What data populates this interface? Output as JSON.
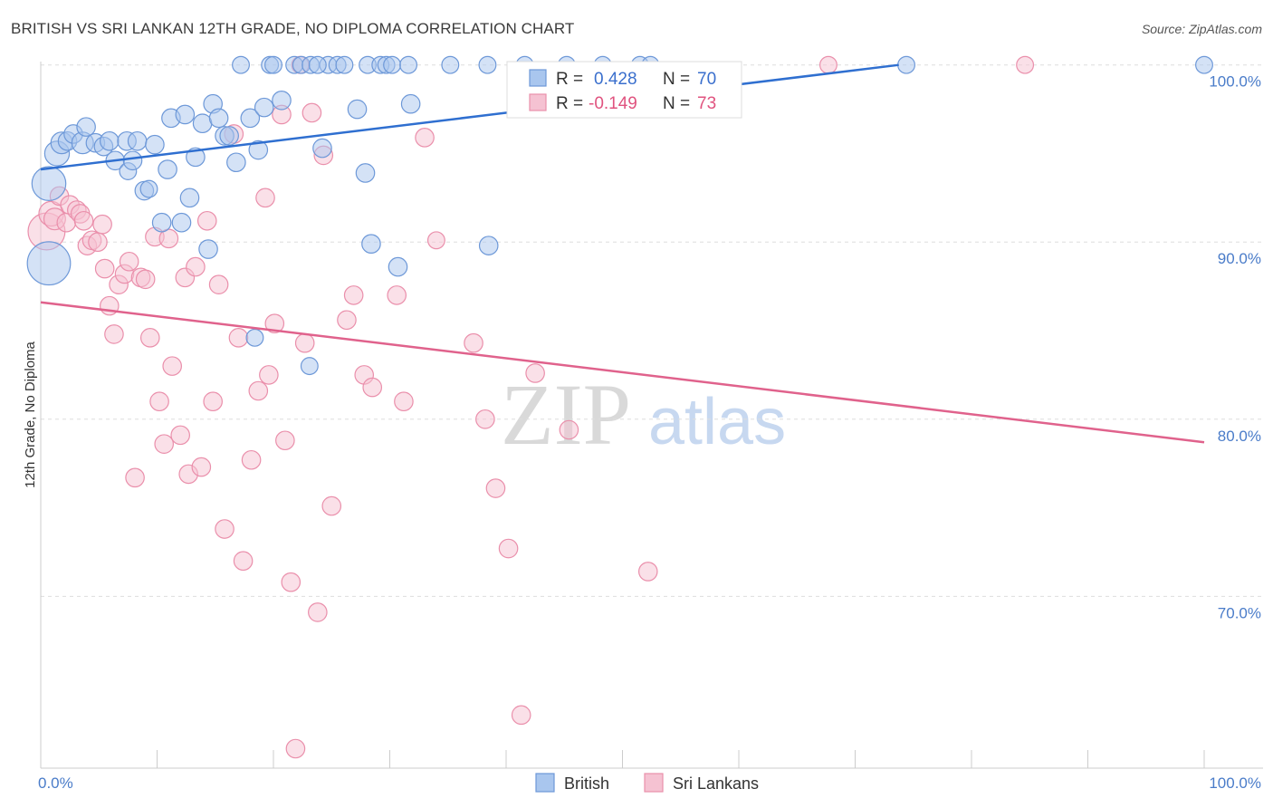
{
  "title": "BRITISH VS SRI LANKAN 12TH GRADE, NO DIPLOMA CORRELATION CHART",
  "source": "Source: ZipAtlas.com",
  "watermark": {
    "zip": "ZIP",
    "atlas": "atlas"
  },
  "colors": {
    "blue_fill": "#a9c6ee",
    "blue_stroke": "#6d98d8",
    "blue_line": "#2f6fd0",
    "pink_fill": "#f5c2d2",
    "pink_stroke": "#ea8fab",
    "pink_line": "#e0628c",
    "tick_label": "#4a7cc9",
    "grid": "#dddddd"
  },
  "legend": {
    "items": [
      {
        "r_label": "R = ",
        "r_value": "0.428",
        "n_label": "N = ",
        "n_value": "70"
      },
      {
        "r_label": "R = ",
        "r_value": "-0.149",
        "n_label": "N = ",
        "n_value": "73"
      }
    ]
  },
  "chart_data": {
    "type": "scatter",
    "title": "BRITISH VS SRI LANKAN 12TH GRADE, NO DIPLOMA CORRELATION CHART",
    "xlabel": "",
    "ylabel": "12th Grade, No Diploma",
    "x_ticks": [
      "0.0%",
      "100.0%"
    ],
    "y_ticks": [
      {
        "value": 100,
        "label": "100.0%"
      },
      {
        "value": 90,
        "label": "90.0%"
      },
      {
        "value": 80,
        "label": "80.0%"
      },
      {
        "value": 70,
        "label": "70.0%"
      }
    ],
    "xlim": [
      0,
      100
    ],
    "ylim": [
      60.3,
      100.7
    ],
    "grid": true,
    "legend_position": "bottom",
    "series": [
      {
        "name": "British",
        "r": 0.428,
        "n": 70,
        "trend": {
          "x": [
            0,
            100
          ],
          "y": [
            94.1,
            102.1
          ]
        },
        "points": [
          [
            0.7,
            88.8,
            28
          ],
          [
            0.7,
            93.3,
            22
          ],
          [
            1.4,
            95.0,
            16
          ],
          [
            1.8,
            95.6,
            14
          ],
          [
            2.3,
            95.7,
            12
          ],
          [
            2.8,
            96.1,
            12
          ],
          [
            3.6,
            95.6,
            14
          ],
          [
            3.9,
            96.5,
            12
          ],
          [
            4.7,
            95.6,
            12
          ],
          [
            5.4,
            95.4,
            12
          ],
          [
            5.9,
            95.7,
            12
          ],
          [
            6.4,
            94.6,
            12
          ],
          [
            7.4,
            95.7,
            12
          ],
          [
            7.5,
            94.0,
            11
          ],
          [
            7.9,
            94.6,
            12
          ],
          [
            8.3,
            95.7,
            12
          ],
          [
            8.9,
            92.9,
            12
          ],
          [
            9.3,
            93.0,
            11
          ],
          [
            9.8,
            95.5,
            12
          ],
          [
            10.4,
            91.1,
            12
          ],
          [
            10.9,
            94.1,
            12
          ],
          [
            11.2,
            97.0,
            12
          ],
          [
            12.1,
            91.1,
            12
          ],
          [
            12.4,
            97.2,
            12
          ],
          [
            12.8,
            92.5,
            12
          ],
          [
            13.3,
            94.8,
            12
          ],
          [
            13.9,
            96.7,
            12
          ],
          [
            14.4,
            89.6,
            12
          ],
          [
            14.8,
            97.8,
            12
          ],
          [
            15.3,
            97.0,
            12
          ],
          [
            15.8,
            96.0,
            12
          ],
          [
            16.2,
            96.0,
            12
          ],
          [
            16.8,
            94.5,
            12
          ],
          [
            17.2,
            100.0,
            11
          ],
          [
            18.0,
            97.0,
            12
          ],
          [
            18.7,
            95.2,
            12
          ],
          [
            19.2,
            97.6,
            12
          ],
          [
            19.7,
            100.0,
            11
          ],
          [
            20.7,
            98.0,
            12
          ],
          [
            21.8,
            100.0,
            11
          ],
          [
            22.4,
            100.0,
            11
          ],
          [
            23.2,
            100.0,
            11
          ],
          [
            24.2,
            95.3,
            12
          ],
          [
            24.7,
            100.0,
            11
          ],
          [
            25.5,
            100.0,
            11
          ],
          [
            26.1,
            100.0,
            11
          ],
          [
            27.2,
            97.5,
            12
          ],
          [
            27.9,
            93.9,
            12
          ],
          [
            28.1,
            100.0,
            11
          ],
          [
            28.4,
            89.9,
            12
          ],
          [
            29.2,
            100.0,
            11
          ],
          [
            29.7,
            100.0,
            11
          ],
          [
            30.2,
            100.0,
            11
          ],
          [
            30.7,
            88.6,
            12
          ],
          [
            31.6,
            100.0,
            11
          ],
          [
            31.8,
            97.8,
            12
          ],
          [
            35.2,
            100.0,
            11
          ],
          [
            38.4,
            100.0,
            11
          ],
          [
            38.5,
            89.8,
            12
          ],
          [
            41.6,
            100.0,
            11
          ],
          [
            45.2,
            100.0,
            11
          ],
          [
            48.3,
            100.0,
            11
          ],
          [
            51.5,
            100.0,
            11
          ],
          [
            52.4,
            100.0,
            11
          ],
          [
            74.4,
            100.0,
            11
          ],
          [
            100.0,
            100.0,
            11
          ],
          [
            18.4,
            84.6,
            11
          ],
          [
            23.1,
            83.0,
            11
          ],
          [
            20.0,
            100.0,
            11
          ],
          [
            23.8,
            100.0,
            11
          ]
        ]
      },
      {
        "name": "Sri Lankans",
        "r": -0.149,
        "n": 73,
        "trend": {
          "x": [
            0,
            100
          ],
          "y": [
            86.6,
            78.7
          ]
        },
        "points": [
          [
            0.5,
            90.6,
            24
          ],
          [
            0.9,
            91.6,
            16
          ],
          [
            1.2,
            91.3,
            14
          ],
          [
            1.6,
            92.6,
            12
          ],
          [
            2.2,
            91.1,
            12
          ],
          [
            2.5,
            92.1,
            12
          ],
          [
            3.1,
            91.8,
            12
          ],
          [
            3.4,
            91.6,
            12
          ],
          [
            3.7,
            91.2,
            12
          ],
          [
            4.0,
            89.8,
            12
          ],
          [
            4.4,
            90.1,
            12
          ],
          [
            4.9,
            90.0,
            12
          ],
          [
            5.3,
            91.0,
            12
          ],
          [
            5.5,
            88.5,
            12
          ],
          [
            5.9,
            86.4,
            12
          ],
          [
            6.3,
            84.8,
            12
          ],
          [
            6.7,
            87.6,
            12
          ],
          [
            7.2,
            88.2,
            12
          ],
          [
            7.6,
            88.9,
            12
          ],
          [
            8.1,
            76.7,
            12
          ],
          [
            8.6,
            88.0,
            12
          ],
          [
            9.0,
            87.9,
            12
          ],
          [
            9.4,
            84.6,
            12
          ],
          [
            9.8,
            90.3,
            12
          ],
          [
            10.2,
            81.0,
            12
          ],
          [
            10.6,
            78.6,
            12
          ],
          [
            11.0,
            90.2,
            12
          ],
          [
            11.3,
            83.0,
            12
          ],
          [
            12.0,
            79.1,
            12
          ],
          [
            12.4,
            88.0,
            12
          ],
          [
            12.7,
            76.9,
            12
          ],
          [
            13.3,
            88.6,
            12
          ],
          [
            13.8,
            77.3,
            12
          ],
          [
            14.3,
            91.2,
            12
          ],
          [
            14.8,
            81.0,
            12
          ],
          [
            15.3,
            87.6,
            12
          ],
          [
            15.8,
            73.8,
            12
          ],
          [
            16.6,
            96.1,
            12
          ],
          [
            17.0,
            84.6,
            12
          ],
          [
            17.4,
            72.0,
            12
          ],
          [
            18.1,
            77.7,
            12
          ],
          [
            18.7,
            81.6,
            12
          ],
          [
            19.3,
            92.5,
            12
          ],
          [
            19.6,
            82.5,
            12
          ],
          [
            20.1,
            85.4,
            12
          ],
          [
            20.7,
            97.2,
            12
          ],
          [
            21.0,
            78.8,
            12
          ],
          [
            21.5,
            70.8,
            12
          ],
          [
            21.9,
            61.4,
            12
          ],
          [
            22.3,
            100.0,
            11
          ],
          [
            22.7,
            84.3,
            12
          ],
          [
            23.3,
            97.3,
            12
          ],
          [
            23.8,
            69.1,
            12
          ],
          [
            24.3,
            94.9,
            12
          ],
          [
            25.0,
            75.1,
            12
          ],
          [
            26.3,
            85.6,
            12
          ],
          [
            26.9,
            87.0,
            12
          ],
          [
            27.8,
            82.5,
            12
          ],
          [
            28.5,
            81.8,
            12
          ],
          [
            30.6,
            87.0,
            12
          ],
          [
            31.2,
            81.0,
            12
          ],
          [
            33.0,
            95.9,
            12
          ],
          [
            37.2,
            84.3,
            12
          ],
          [
            38.2,
            80.0,
            12
          ],
          [
            39.1,
            76.1,
            12
          ],
          [
            40.2,
            72.7,
            12
          ],
          [
            41.3,
            63.3,
            12
          ],
          [
            42.5,
            82.6,
            12
          ],
          [
            45.4,
            79.4,
            12
          ],
          [
            52.2,
            71.4,
            12
          ],
          [
            67.7,
            100.0,
            11
          ],
          [
            84.6,
            100.0,
            11
          ],
          [
            34.0,
            90.1,
            11
          ]
        ]
      }
    ]
  }
}
